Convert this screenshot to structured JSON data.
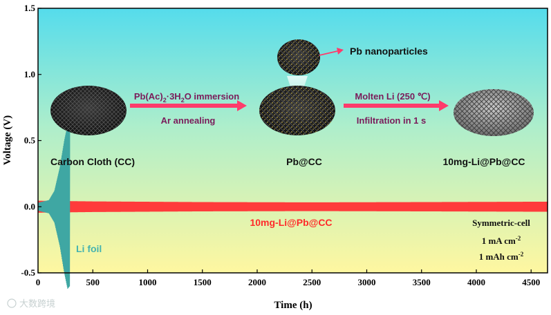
{
  "chart_data": {
    "type": "line",
    "xlabel": "Time (h)",
    "ylabel": "Voltage (V)",
    "xlim": [
      0,
      4650
    ],
    "ylim": [
      -0.5,
      1.5
    ],
    "x_ticks": [
      0,
      500,
      1000,
      1500,
      2000,
      2500,
      3000,
      3500,
      4000,
      4500
    ],
    "y_ticks": [
      -0.5,
      0.0,
      0.5,
      1.0,
      1.5
    ],
    "y_tick_labels": [
      "-0.5",
      "0.0",
      "0.5",
      "1.0",
      "1.5"
    ],
    "series": [
      {
        "name": "10mg-Li@Pb@CC",
        "color": "#ff3b3b",
        "x_range": [
          0,
          4650
        ],
        "amplitude_points": [
          [
            0,
            0.045
          ],
          [
            500,
            0.04
          ],
          [
            1500,
            0.035
          ],
          [
            2500,
            0.033
          ],
          [
            3500,
            0.035
          ],
          [
            4650,
            0.038
          ]
        ]
      },
      {
        "name": "Li foil",
        "color": "#3fa7a3",
        "x_range": [
          0,
          290
        ],
        "amplitude_points": [
          [
            0,
            0.03
          ],
          [
            100,
            0.05
          ],
          [
            150,
            0.12
          ],
          [
            200,
            0.3
          ],
          [
            240,
            0.5
          ],
          [
            270,
            0.62
          ],
          [
            290,
            0.6
          ]
        ]
      }
    ],
    "background_gradient": [
      "#55dcec",
      "#fff7a0"
    ]
  },
  "annotations": {
    "step1_line1": "Pb(Ac)",
    "step1_sub": "2",
    "step1_line1_rest": "·3H",
    "step1_sub2": "2",
    "step1_line1_end": "O immersion",
    "step1_line2": "Ar annealing",
    "step2_line1": "Molten Li (250 ℃)",
    "step2_line2": "Infiltration in 1 s",
    "pb_nanoparticles": "Pb nanoparticles",
    "carbon_cloth": "Carbon Cloth (CC)",
    "pb_cc": "Pb@CC",
    "li_pb_cc_top": "10mg-Li@Pb@CC",
    "li_pb_cc_series": "10mg-Li@Pb@CC",
    "li_foil": "Li foil",
    "symmetric_cell": "Symmetric-cell",
    "current_density_value": "1 mA cm",
    "current_density_exp": "-2",
    "capacity_value": "1 mAh cm",
    "capacity_exp": "-2"
  },
  "watermark": "大数跨境",
  "colors": {
    "arrow": "#ff3b6b",
    "step_text": "#7a1b5a",
    "red_label": "#ff2a2a",
    "teal_label": "#45b3b0"
  }
}
